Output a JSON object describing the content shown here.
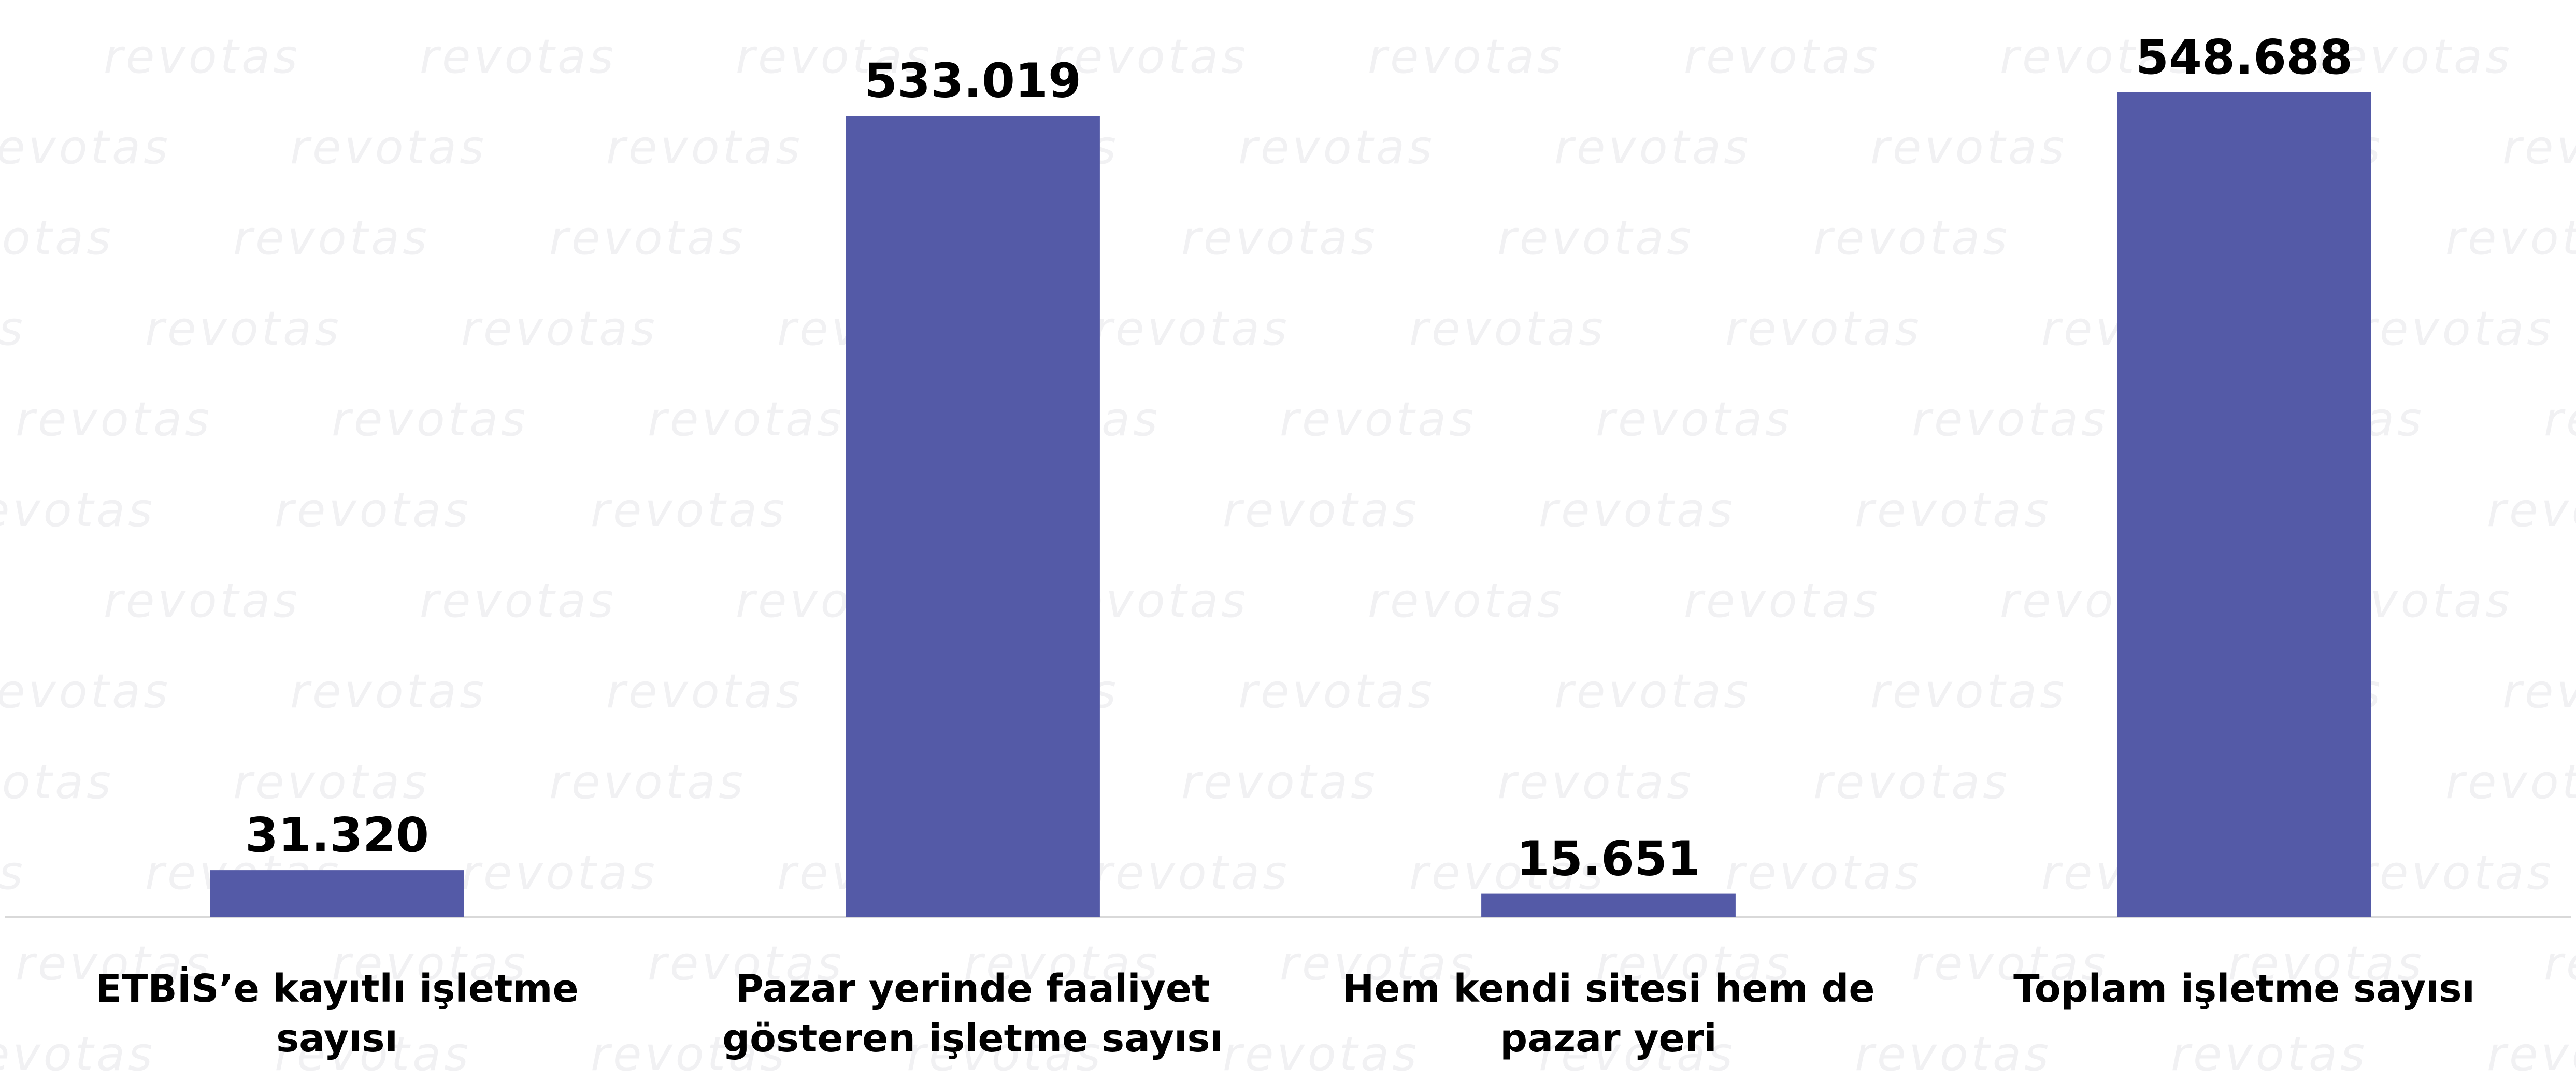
{
  "chart_data": {
    "type": "bar",
    "watermark": "revotas",
    "categories": [
      "ETBİS’e kayıtlı işletme sayısı",
      "Pazar yerinde faaliyet gösteren işletme sayısı",
      "Hem kendi sitesi hem de pazar yeri",
      "Toplam işletme sayısı"
    ],
    "values": [
      31320,
      533019,
      15651,
      548688
    ],
    "value_labels": [
      "31.320",
      "533.019",
      "15.651",
      "548.688"
    ],
    "color": "#545aa7",
    "ylim": [
      0,
      600000
    ]
  }
}
